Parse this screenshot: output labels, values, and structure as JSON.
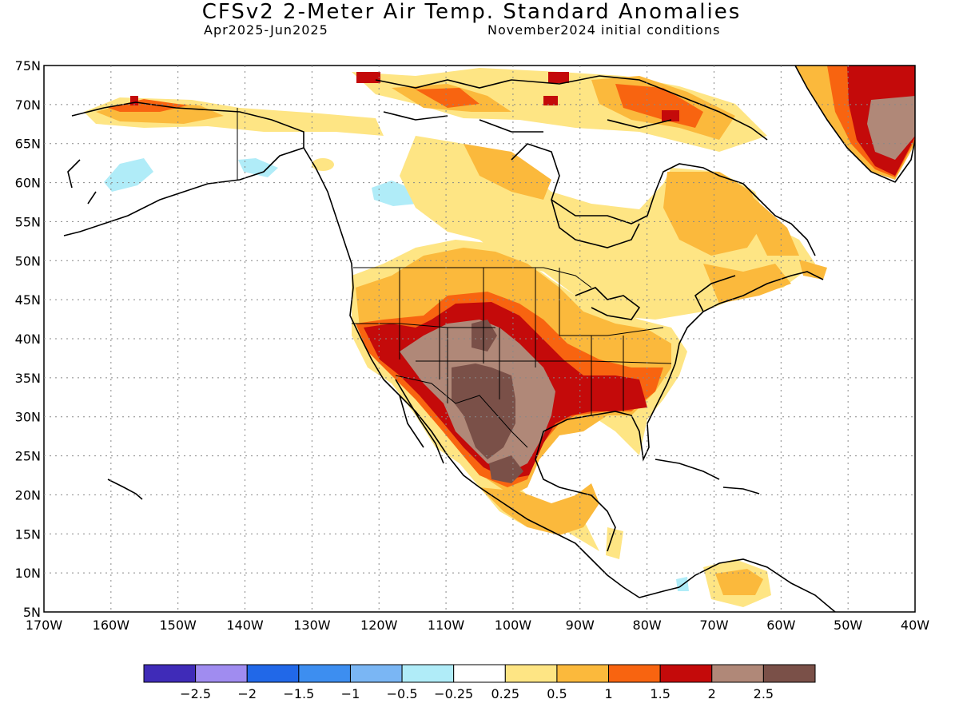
{
  "header": {
    "title": "CFSv2 2-Meter Air Temp. Standard Anomalies",
    "period": "Apr2025-Jun2025",
    "init": "November2024 initial conditions"
  },
  "map": {
    "lon_range": [
      -170,
      -40
    ],
    "lat_range": [
      5,
      75
    ],
    "lon_labels": [
      "170W",
      "160W",
      "150W",
      "140W",
      "130W",
      "120W",
      "110W",
      "100W",
      "90W",
      "80W",
      "70W",
      "60W",
      "50W",
      "40W"
    ],
    "lat_labels": [
      "5N",
      "10N",
      "15N",
      "20N",
      "25N",
      "30N",
      "35N",
      "40N",
      "45N",
      "50N",
      "55N",
      "60N",
      "65N",
      "70N",
      "75N"
    ],
    "grid": "dotted",
    "colorbar": {
      "colors": [
        "#3f2bb8",
        "#a08cf0",
        "#2168e8",
        "#3d8ef0",
        "#7ab6f4",
        "#b0ecf8",
        "#ffffff",
        "#fee584",
        "#fbb93c",
        "#f86410",
        "#c40a0a",
        "#b08878",
        "#7a5048"
      ],
      "labels": [
        "-2.5",
        "-2",
        "-1.5",
        "-1",
        "-0.5",
        "-0.25",
        "0.25",
        "0.5",
        "1",
        "1.5",
        "2",
        "2.5"
      ]
    }
  }
}
